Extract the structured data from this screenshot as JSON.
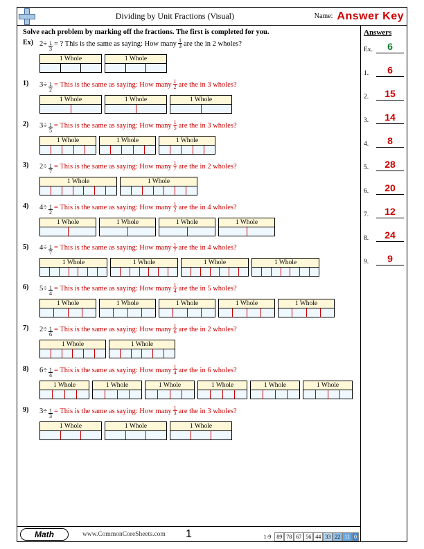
{
  "header": {
    "title": "Dividing by Unit Fractions (Visual)",
    "name_label": "Name:",
    "answer_key": "Answer Key"
  },
  "instructions": "Solve each problem by marking off the fractions. The first is completed for you.",
  "sidebar": {
    "title": "Answers",
    "items": [
      {
        "label": "Ex.",
        "value": "6",
        "cls": "green"
      },
      {
        "label": "1.",
        "value": "6",
        "cls": "redans"
      },
      {
        "label": "2.",
        "value": "15",
        "cls": "redans"
      },
      {
        "label": "3.",
        "value": "14",
        "cls": "redans"
      },
      {
        "label": "4.",
        "value": "8",
        "cls": "redans"
      },
      {
        "label": "5.",
        "value": "28",
        "cls": "redans"
      },
      {
        "label": "6.",
        "value": "20",
        "cls": "redans"
      },
      {
        "label": "7.",
        "value": "12",
        "cls": "redans"
      },
      {
        "label": "8.",
        "value": "24",
        "cls": "redans"
      },
      {
        "label": "9.",
        "value": "9",
        "cls": "redans"
      }
    ]
  },
  "problems": [
    {
      "num": "Ex)",
      "whole": 2,
      "den": 3,
      "red": false,
      "tail": "= ? This is the same as saying: How many",
      "tail2": "are the in 2 wholes?",
      "wwidth": 90
    },
    {
      "num": "1)",
      "whole": 3,
      "den": 2,
      "red": true,
      "tail": "= This is the same as saying: How many",
      "tail2": "are the in 3 wholes?",
      "wwidth": 90
    },
    {
      "num": "2)",
      "whole": 3,
      "den": 5,
      "red": true,
      "tail": "= This is the same as saying: How many",
      "tail2": "are the in 3 wholes?",
      "wwidth": 82
    },
    {
      "num": "3)",
      "whole": 2,
      "den": 7,
      "red": true,
      "tail": "= This is the same as saying: How many",
      "tail2": "are the in 2 wholes?",
      "wwidth": 112
    },
    {
      "num": "4)",
      "whole": 4,
      "den": 2,
      "red": true,
      "tail": "= This is the same as saying: How many",
      "tail2": "are the in 4 wholes?",
      "wwidth": 82
    },
    {
      "num": "5)",
      "whole": 4,
      "den": 7,
      "red": true,
      "tail": "= This is the same as saying: How many",
      "tail2": "are the in 4 wholes?",
      "wwidth": 98
    },
    {
      "num": "6)",
      "whole": 5,
      "den": 4,
      "red": true,
      "tail": "= This is the same as saying: How many",
      "tail2": "are the in 5 wholes?",
      "wwidth": 82
    },
    {
      "num": "7)",
      "whole": 2,
      "den": 6,
      "red": true,
      "tail": "= This is the same as saying: How many",
      "tail2": "are the in 2 wholes?",
      "wwidth": 96
    },
    {
      "num": "8)",
      "whole": 6,
      "den": 4,
      "red": true,
      "tail": "= This is the same as saying: How many",
      "tail2": "are the in 6 wholes?",
      "wwidth": 72
    },
    {
      "num": "9)",
      "whole": 3,
      "den": 3,
      "red": true,
      "tail": "= This is the same as saying: How many",
      "tail2": "are the in 3 wholes?",
      "wwidth": 90
    }
  ],
  "footer": {
    "subject": "Math",
    "url": "www.CommonCoreSheets.com",
    "page": "1",
    "range": "1-9",
    "scores": [
      "89",
      "78",
      "67",
      "56",
      "44",
      "33",
      "22",
      "11",
      "0"
    ]
  },
  "whole_label": "1 Whole",
  "colors": {
    "whole_bg": "#fff8d8",
    "part_bg": "#f0f8ff",
    "red": "#c00",
    "green": "#0a7a2a"
  }
}
